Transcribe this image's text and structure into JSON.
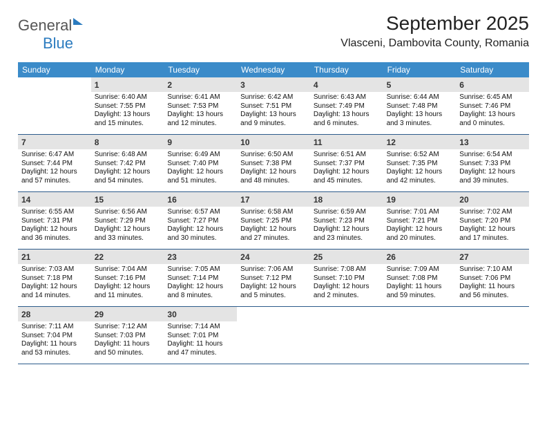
{
  "logo": {
    "word1": "General",
    "word2": "Blue"
  },
  "title": "September 2025",
  "location": "Vlasceni, Dambovita County, Romania",
  "colors": {
    "header_bg": "#3b8bc9",
    "header_fg": "#ffffff",
    "daynum_bg": "#e4e4e4",
    "week_divider": "#2b5a8a",
    "logo_gray": "#555555",
    "logo_blue": "#2b7bbf",
    "page_bg": "#ffffff",
    "text": "#1a1a1a"
  },
  "day_names": [
    "Sunday",
    "Monday",
    "Tuesday",
    "Wednesday",
    "Thursday",
    "Friday",
    "Saturday"
  ],
  "start_offset": 1,
  "days": [
    {
      "n": "1",
      "sunrise": "6:40 AM",
      "sunset": "7:55 PM",
      "daylight": "13 hours and 15 minutes."
    },
    {
      "n": "2",
      "sunrise": "6:41 AM",
      "sunset": "7:53 PM",
      "daylight": "13 hours and 12 minutes."
    },
    {
      "n": "3",
      "sunrise": "6:42 AM",
      "sunset": "7:51 PM",
      "daylight": "13 hours and 9 minutes."
    },
    {
      "n": "4",
      "sunrise": "6:43 AM",
      "sunset": "7:49 PM",
      "daylight": "13 hours and 6 minutes."
    },
    {
      "n": "5",
      "sunrise": "6:44 AM",
      "sunset": "7:48 PM",
      "daylight": "13 hours and 3 minutes."
    },
    {
      "n": "6",
      "sunrise": "6:45 AM",
      "sunset": "7:46 PM",
      "daylight": "13 hours and 0 minutes."
    },
    {
      "n": "7",
      "sunrise": "6:47 AM",
      "sunset": "7:44 PM",
      "daylight": "12 hours and 57 minutes."
    },
    {
      "n": "8",
      "sunrise": "6:48 AM",
      "sunset": "7:42 PM",
      "daylight": "12 hours and 54 minutes."
    },
    {
      "n": "9",
      "sunrise": "6:49 AM",
      "sunset": "7:40 PM",
      "daylight": "12 hours and 51 minutes."
    },
    {
      "n": "10",
      "sunrise": "6:50 AM",
      "sunset": "7:38 PM",
      "daylight": "12 hours and 48 minutes."
    },
    {
      "n": "11",
      "sunrise": "6:51 AM",
      "sunset": "7:37 PM",
      "daylight": "12 hours and 45 minutes."
    },
    {
      "n": "12",
      "sunrise": "6:52 AM",
      "sunset": "7:35 PM",
      "daylight": "12 hours and 42 minutes."
    },
    {
      "n": "13",
      "sunrise": "6:54 AM",
      "sunset": "7:33 PM",
      "daylight": "12 hours and 39 minutes."
    },
    {
      "n": "14",
      "sunrise": "6:55 AM",
      "sunset": "7:31 PM",
      "daylight": "12 hours and 36 minutes."
    },
    {
      "n": "15",
      "sunrise": "6:56 AM",
      "sunset": "7:29 PM",
      "daylight": "12 hours and 33 minutes."
    },
    {
      "n": "16",
      "sunrise": "6:57 AM",
      "sunset": "7:27 PM",
      "daylight": "12 hours and 30 minutes."
    },
    {
      "n": "17",
      "sunrise": "6:58 AM",
      "sunset": "7:25 PM",
      "daylight": "12 hours and 27 minutes."
    },
    {
      "n": "18",
      "sunrise": "6:59 AM",
      "sunset": "7:23 PM",
      "daylight": "12 hours and 23 minutes."
    },
    {
      "n": "19",
      "sunrise": "7:01 AM",
      "sunset": "7:21 PM",
      "daylight": "12 hours and 20 minutes."
    },
    {
      "n": "20",
      "sunrise": "7:02 AM",
      "sunset": "7:20 PM",
      "daylight": "12 hours and 17 minutes."
    },
    {
      "n": "21",
      "sunrise": "7:03 AM",
      "sunset": "7:18 PM",
      "daylight": "12 hours and 14 minutes."
    },
    {
      "n": "22",
      "sunrise": "7:04 AM",
      "sunset": "7:16 PM",
      "daylight": "12 hours and 11 minutes."
    },
    {
      "n": "23",
      "sunrise": "7:05 AM",
      "sunset": "7:14 PM",
      "daylight": "12 hours and 8 minutes."
    },
    {
      "n": "24",
      "sunrise": "7:06 AM",
      "sunset": "7:12 PM",
      "daylight": "12 hours and 5 minutes."
    },
    {
      "n": "25",
      "sunrise": "7:08 AM",
      "sunset": "7:10 PM",
      "daylight": "12 hours and 2 minutes."
    },
    {
      "n": "26",
      "sunrise": "7:09 AM",
      "sunset": "7:08 PM",
      "daylight": "11 hours and 59 minutes."
    },
    {
      "n": "27",
      "sunrise": "7:10 AM",
      "sunset": "7:06 PM",
      "daylight": "11 hours and 56 minutes."
    },
    {
      "n": "28",
      "sunrise": "7:11 AM",
      "sunset": "7:04 PM",
      "daylight": "11 hours and 53 minutes."
    },
    {
      "n": "29",
      "sunrise": "7:12 AM",
      "sunset": "7:03 PM",
      "daylight": "11 hours and 50 minutes."
    },
    {
      "n": "30",
      "sunrise": "7:14 AM",
      "sunset": "7:01 PM",
      "daylight": "11 hours and 47 minutes."
    }
  ],
  "labels": {
    "sunrise_prefix": "Sunrise: ",
    "sunset_prefix": "Sunset: ",
    "daylight_prefix": "Daylight: "
  }
}
